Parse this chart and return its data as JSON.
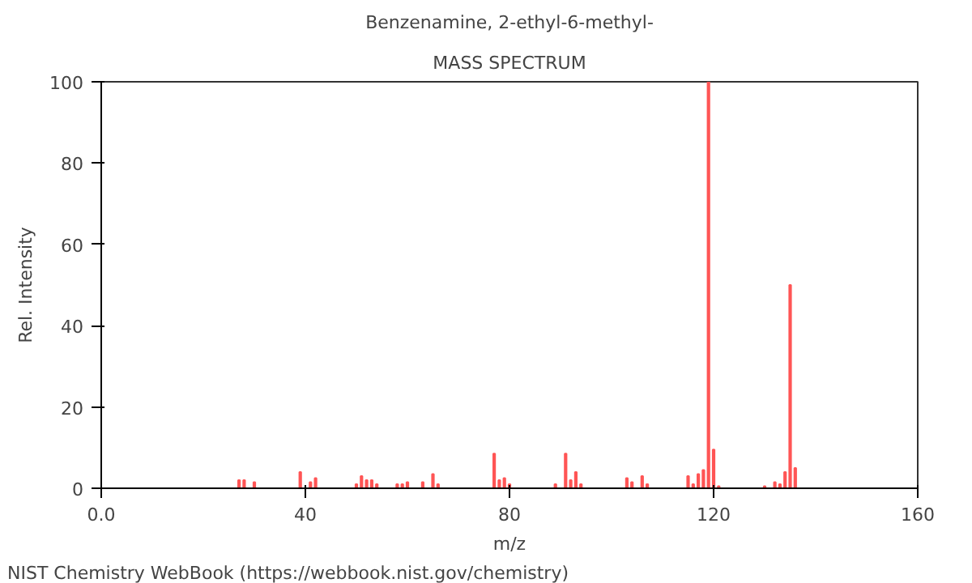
{
  "chart_data": {
    "type": "bar",
    "title": "Benzenamine, 2-ethyl-6-methyl-",
    "subtitle": "MASS SPECTRUM",
    "xlabel": "m/z",
    "ylabel": "Rel. Intensity",
    "x": [
      27,
      28,
      30,
      39,
      41,
      42,
      50,
      51,
      52,
      53,
      54,
      58,
      59,
      60,
      63,
      65,
      66,
      77,
      78,
      79,
      80,
      89,
      91,
      92,
      93,
      94,
      103,
      104,
      106,
      107,
      115,
      116,
      117,
      118,
      119,
      120,
      121,
      130,
      132,
      133,
      134,
      135,
      136
    ],
    "values": [
      2,
      2,
      1.5,
      4,
      1.5,
      2.5,
      1,
      3,
      2,
      2,
      1,
      1,
      1,
      1.5,
      1.5,
      3.5,
      1,
      8.5,
      2,
      2.5,
      1,
      1,
      8.5,
      2,
      4,
      1,
      2.5,
      1.5,
      3,
      1,
      3,
      1,
      3.5,
      4.5,
      100,
      9.5,
      0.5,
      0.5,
      1.5,
      1,
      4,
      50,
      5
    ],
    "color": "#ff5555",
    "xlim": [
      0,
      160
    ],
    "xticks": [
      {
        "value": 0,
        "label": "0.0"
      },
      40,
      80,
      120,
      160
    ],
    "ylim": [
      0,
      100
    ],
    "yticks": [
      0,
      20,
      40,
      60,
      80,
      100
    ],
    "grid": false,
    "annotations": [
      "NIST Chemistry WebBook (https://webbook.nist.gov/chemistry)"
    ]
  }
}
